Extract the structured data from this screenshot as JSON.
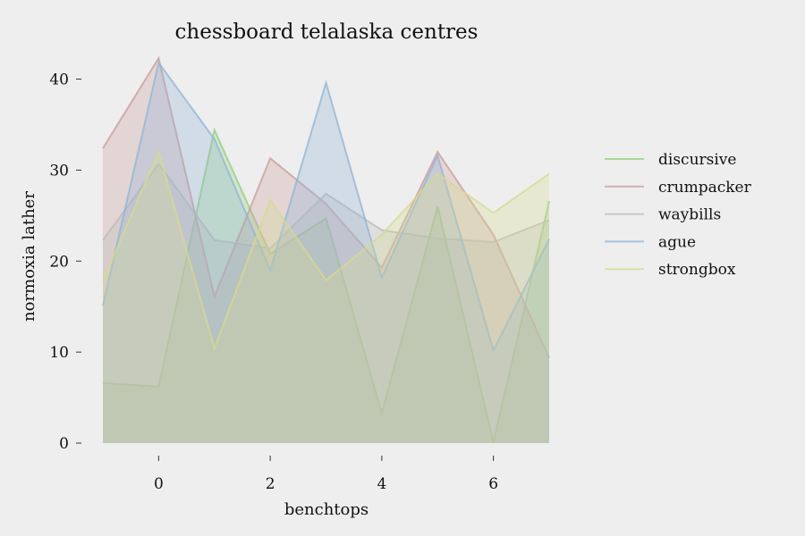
{
  "chart_data": {
    "type": "area",
    "title": "chessboard telalaska centres",
    "xlabel": "benchtops",
    "ylabel": "normoxia lather",
    "x": [
      -1,
      0,
      1,
      2,
      3,
      4,
      5,
      6,
      7
    ],
    "xlim": [
      -1,
      7
    ],
    "ylim": [
      0,
      43
    ],
    "x_ticks": [
      0,
      2,
      4,
      6
    ],
    "y_ticks": [
      0,
      10,
      20,
      30,
      40
    ],
    "grid": false,
    "legend_position": "right",
    "stacked": false,
    "series": [
      {
        "name": "discursive",
        "color": "#8fcf7a",
        "values": [
          6.6,
          6.2,
          34.4,
          20.8,
          24.7,
          3.3,
          26.0,
          0.1,
          26.6
        ]
      },
      {
        "name": "crumpacker",
        "color": "#c99a98",
        "values": [
          32.4,
          42.3,
          16.1,
          31.3,
          26.3,
          19.3,
          32.0,
          22.9,
          9.4
        ]
      },
      {
        "name": "waybills",
        "color": "#b9b9b9",
        "values": [
          22.3,
          30.7,
          22.3,
          21.4,
          27.4,
          23.4,
          22.5,
          22.1,
          24.5
        ]
      },
      {
        "name": "ague",
        "color": "#8db4d6",
        "values": [
          15.1,
          41.8,
          33.4,
          19.0,
          39.6,
          18.2,
          31.6,
          10.2,
          22.4
        ]
      },
      {
        "name": "strongbox",
        "color": "#d6da8f",
        "values": [
          17.8,
          32.0,
          10.4,
          26.7,
          17.9,
          22.9,
          29.6,
          25.3,
          29.6
        ]
      }
    ]
  }
}
